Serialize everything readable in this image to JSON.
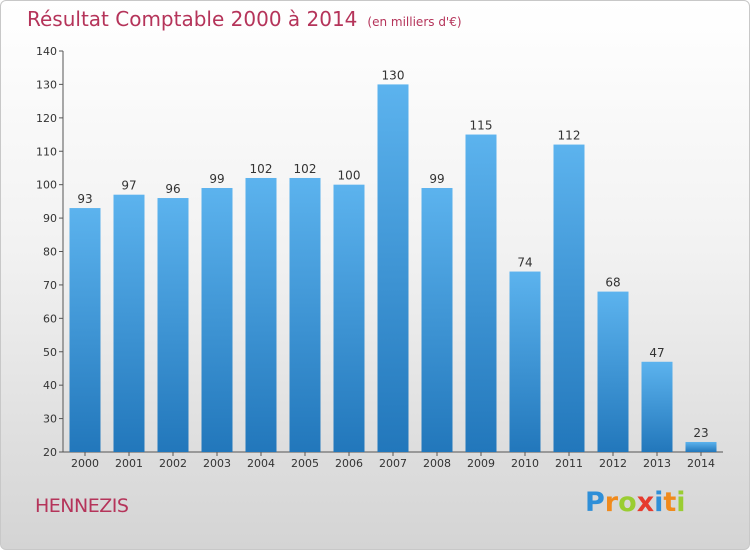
{
  "title": "Résultat Comptable 2000 à 2014",
  "unit": "(en milliers d'€)",
  "place": "HENNEZIS",
  "logo": {
    "letters": [
      "P",
      "r",
      "o",
      "x",
      "i",
      "t",
      "i"
    ],
    "colors": [
      "#2f8fd8",
      "#f08a1c",
      "#9acd32",
      "#e63b2e",
      "#2f8fd8",
      "#f08a1c",
      "#9acd32"
    ]
  },
  "colors": {
    "bar": "#3d95d6",
    "accent": "#b5345a"
  },
  "chart_data": {
    "type": "bar",
    "title": "Résultat Comptable 2000 à 2014",
    "subtitle": "(en milliers d'€)",
    "categories": [
      "2000",
      "2001",
      "2002",
      "2003",
      "2004",
      "2005",
      "2006",
      "2007",
      "2008",
      "2009",
      "2010",
      "2011",
      "2012",
      "2013",
      "2014"
    ],
    "values": [
      93,
      97,
      96,
      99,
      102,
      102,
      100,
      130,
      99,
      115,
      74,
      112,
      68,
      47,
      23
    ],
    "ylim": [
      20,
      140
    ],
    "yticks": [
      20,
      30,
      40,
      50,
      60,
      70,
      80,
      90,
      100,
      110,
      120,
      130,
      140
    ],
    "grid": false,
    "legend": "none"
  }
}
